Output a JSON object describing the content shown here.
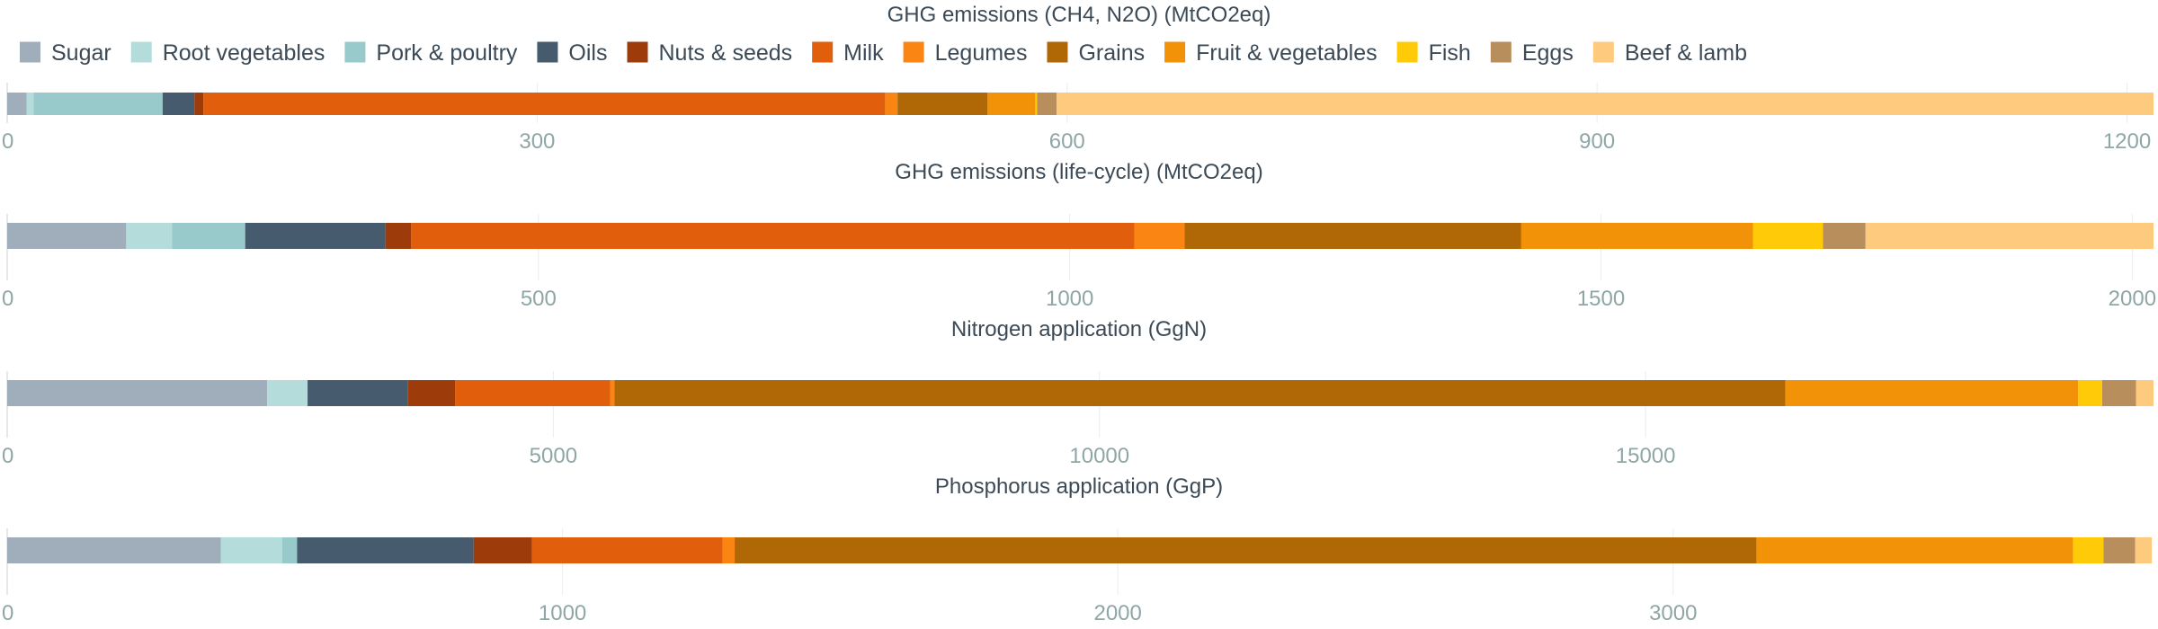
{
  "legend": {
    "items": [
      {
        "label": "Sugar",
        "color": "#a0aebb"
      },
      {
        "label": "Root vegetables",
        "color": "#b3dcdb"
      },
      {
        "label": "Pork & poultry",
        "color": "#98cacb"
      },
      {
        "label": "Oils",
        "color": "#465b6d"
      },
      {
        "label": "Nuts & seeds",
        "color": "#9d3b0b"
      },
      {
        "label": "Milk",
        "color": "#e05e0c"
      },
      {
        "label": "Legumes",
        "color": "#fa8513"
      },
      {
        "label": "Grains",
        "color": "#b06807"
      },
      {
        "label": "Fruit & vegetables",
        "color": "#f29209"
      },
      {
        "label": "Fish",
        "color": "#ffcb08"
      },
      {
        "label": "Eggs",
        "color": "#b88f5c"
      },
      {
        "label": "Beef & lamb",
        "color": "#fdca7e"
      }
    ]
  },
  "chart_data": [
    {
      "type": "bar",
      "orientation": "horizontal",
      "stacked": true,
      "title": "GHG emissions (CH4, N2O) (MtCO2eq)",
      "xlim": [
        0,
        1215
      ],
      "xticks": [
        0,
        300,
        600,
        900,
        1200
      ],
      "categories": [
        "Sugar",
        "Root vegetables",
        "Pork & poultry",
        "Oils",
        "Nuts & seeds",
        "Milk",
        "Legumes",
        "Grains",
        "Fruit & vegetables",
        "Fish",
        "Eggs",
        "Beef & lamb"
      ],
      "values": [
        11,
        4,
        73,
        18,
        5,
        386,
        7,
        51,
        27,
        1,
        11,
        621
      ]
    },
    {
      "type": "bar",
      "orientation": "horizontal",
      "stacked": true,
      "title": "GHG emissions (life-cycle) (MtCO2eq)",
      "xlim": [
        0,
        2020
      ],
      "xticks": [
        0,
        500,
        1000,
        1500,
        2000
      ],
      "categories": [
        "Sugar",
        "Root vegetables",
        "Pork & poultry",
        "Oils",
        "Nuts & seeds",
        "Milk",
        "Legumes",
        "Grains",
        "Fruit & vegetables",
        "Fish",
        "Eggs",
        "Beef & lamb"
      ],
      "values": [
        112,
        43,
        69,
        132,
        24,
        681,
        47,
        317,
        218,
        66,
        40,
        271
      ]
    },
    {
      "type": "bar",
      "orientation": "horizontal",
      "stacked": true,
      "title": "Nitrogen application (GgN)",
      "xlim": [
        0,
        19650
      ],
      "xticks": [
        0,
        5000,
        10000,
        15000
      ],
      "categories": [
        "Sugar",
        "Root vegetables",
        "Pork & poultry",
        "Oils",
        "Nuts & seeds",
        "Milk",
        "Legumes",
        "Grains",
        "Fruit & vegetables",
        "Fish",
        "Eggs",
        "Beef & lamb"
      ],
      "values": [
        2380,
        370,
        0,
        920,
        430,
        1420,
        40,
        10720,
        2680,
        220,
        310,
        160
      ]
    },
    {
      "type": "bar",
      "orientation": "horizontal",
      "stacked": true,
      "title": "Phosphorus application (GgP)",
      "xlim": [
        0,
        3865
      ],
      "xticks": [
        0,
        1000,
        2000,
        3000
      ],
      "categories": [
        "Sugar",
        "Root vegetables",
        "Pork & poultry",
        "Oils",
        "Nuts & seeds",
        "Milk",
        "Legumes",
        "Grains",
        "Fruit & vegetables",
        "Fish",
        "Eggs",
        "Beef & lamb"
      ],
      "values": [
        385,
        110,
        27,
        318,
        105,
        343,
        22,
        1840,
        570,
        55,
        57,
        30
      ]
    }
  ]
}
